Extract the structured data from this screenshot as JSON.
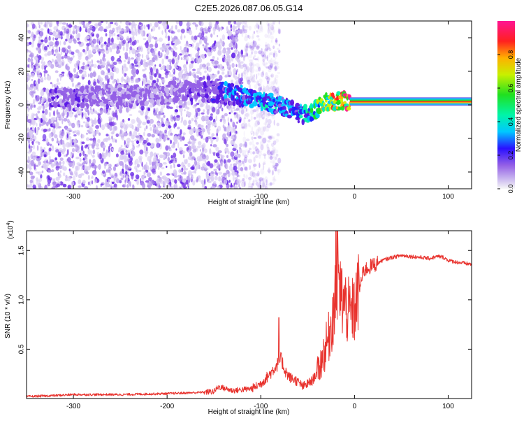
{
  "title": "C2E5.2026.087.06.05.G14",
  "colors": {
    "snr_line": "#e8322d",
    "axis": "#000000",
    "background": "#ffffff",
    "colormap": [
      "#f7f7f7",
      "#c9b6ef",
      "#9460e6",
      "#5a16e6",
      "#1f20ff",
      "#00c8ff",
      "#00f5a8",
      "#20e020",
      "#c8f000",
      "#ffb000",
      "#ff2020",
      "#ff1493"
    ]
  },
  "chart_data": [
    {
      "id": "spectrogram",
      "type": "heatmap",
      "xlabel": "Height of straight line (km)",
      "ylabel": "Frequency (Hz)",
      "xlim": [
        -350,
        125
      ],
      "ylim": [
        -50,
        50
      ],
      "xticks": [
        -300,
        -200,
        -100,
        0,
        100
      ],
      "xtick_labels": [
        "-300",
        "-200",
        "-100",
        "0",
        "100"
      ],
      "yticks": [
        -40,
        -20,
        0,
        20,
        40
      ],
      "ytick_labels": [
        "-40",
        "-20",
        "0",
        "20",
        "40"
      ],
      "colorbar": {
        "label": "Normalized spectral amplitude",
        "range": [
          0,
          1
        ],
        "ticks": [
          0.0,
          0.2,
          0.4,
          0.6,
          0.8
        ],
        "tick_labels": [
          "0.0",
          "0.2",
          "0.4",
          "0.6",
          "0.8"
        ]
      },
      "noise_extent_km": [
        -350,
        -120
      ],
      "signal_ridge": {
        "height_km": [
          -320,
          -300,
          -280,
          -250,
          -200,
          -160,
          -140,
          -120,
          -100,
          -80,
          -60,
          -50,
          -40,
          -30,
          -20,
          -10,
          0,
          50,
          125
        ],
        "center_hz": [
          4,
          3,
          5,
          6,
          7,
          8,
          7,
          5,
          3,
          0,
          -5,
          -6,
          -2,
          2,
          2,
          2,
          2,
          2,
          2
        ],
        "amplitude": [
          0.18,
          0.2,
          0.16,
          0.15,
          0.15,
          0.2,
          0.3,
          0.35,
          0.4,
          0.35,
          0.35,
          0.45,
          0.5,
          0.6,
          0.7,
          0.8,
          0.85,
          0.9,
          0.9
        ]
      }
    },
    {
      "id": "snr",
      "type": "line",
      "xlabel": "Height of straight line (km)",
      "ylabel": "SNR (10 * v/v)",
      "y_scale_label": "(x10",
      "y_scale_exp": "4",
      "xlim": [
        -350,
        125
      ],
      "ylim": [
        0,
        1.7
      ],
      "xticks": [
        -300,
        -200,
        -100,
        0,
        100
      ],
      "xtick_labels": [
        "-300",
        "-200",
        "-100",
        "0",
        "100"
      ],
      "yticks": [
        0.5,
        1.0,
        1.5
      ],
      "ytick_labels": [
        "0.5",
        "1.0",
        "1.5"
      ],
      "series": [
        {
          "name": "SNR",
          "x": [
            -350,
            -320,
            -300,
            -250,
            -200,
            -170,
            -150,
            -145,
            -130,
            -110,
            -100,
            -90,
            -82,
            -78,
            -75,
            -70,
            -62,
            -55,
            -45,
            -38,
            -33,
            -28,
            -25,
            -22,
            -18,
            -15,
            -10,
            -5,
            0,
            5,
            10,
            20,
            30,
            40,
            50,
            60,
            70,
            80,
            90,
            95,
            100,
            110,
            125
          ],
          "y": [
            0.02,
            0.03,
            0.04,
            0.04,
            0.05,
            0.06,
            0.07,
            0.12,
            0.08,
            0.1,
            0.15,
            0.25,
            0.35,
            0.4,
            0.3,
            0.22,
            0.18,
            0.12,
            0.18,
            0.3,
            0.45,
            0.6,
            0.75,
            0.9,
            1.1,
            1.05,
            0.95,
            0.85,
            0.9,
            1.1,
            1.3,
            1.35,
            1.4,
            1.43,
            1.45,
            1.44,
            1.43,
            1.42,
            1.44,
            1.43,
            1.4,
            1.38,
            1.36
          ]
        }
      ]
    }
  ]
}
